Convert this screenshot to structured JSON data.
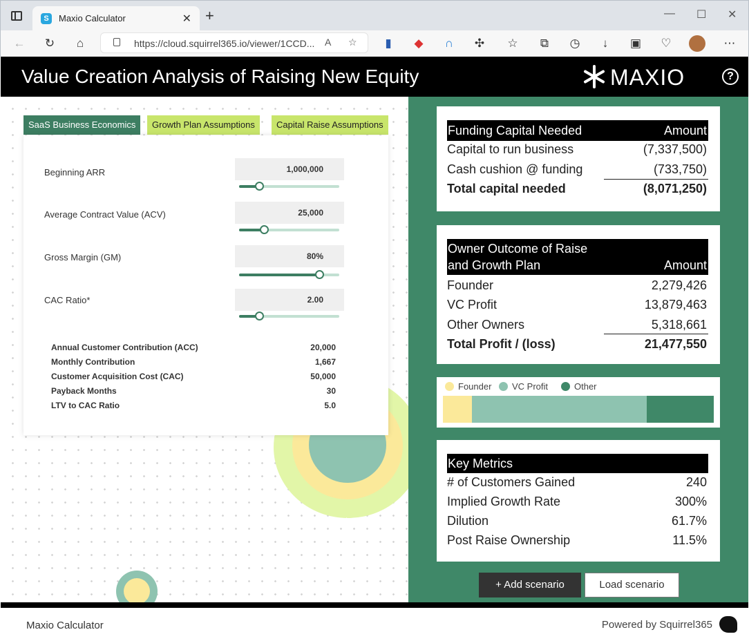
{
  "browser": {
    "tab_title": "Maxio Calculator",
    "url": "https://cloud.squirrel365.io/viewer/1CCD..."
  },
  "app": {
    "title": "Value Creation Analysis of Raising New Equity",
    "brand": "MAXIO",
    "help": "?"
  },
  "tabs": [
    "SaaS Business Economics",
    "Growth Plan Assumptions",
    "Capital Raise Assumptions"
  ],
  "inputs": [
    {
      "label": "Beginning ARR",
      "value": "1,000,000",
      "slider_fraction": 0.2
    },
    {
      "label": "Average Contract Value (ACV)",
      "value": "25,000",
      "slider_fraction": 0.25
    },
    {
      "label": "Gross Margin (GM)",
      "value": "80%",
      "slider_fraction": 0.8
    },
    {
      "label": "CAC Ratio*",
      "value": "2.00",
      "slider_fraction": 0.2
    }
  ],
  "metrics": [
    {
      "label": "Annual Customer Contribution (ACC)",
      "value": "20,000"
    },
    {
      "label": "Monthly Contribution",
      "value": "1,667"
    },
    {
      "label": "Customer Acquisition Cost (CAC)",
      "value": "50,000"
    },
    {
      "label": "Payback Months",
      "value": "30"
    },
    {
      "label": "LTV to CAC Ratio",
      "value": "5.0"
    }
  ],
  "funding": {
    "header": "Funding Capital Needed",
    "amount_header": "Amount",
    "rows": [
      {
        "label": "Capital to run business",
        "value": "(7,337,500)"
      },
      {
        "label": "Cash cushion @ funding",
        "value": "(733,750)"
      }
    ],
    "total": {
      "label": "Total capital needed",
      "value": "(8,071,250)"
    }
  },
  "owner": {
    "header_line1": "Owner Outcome of Raise",
    "header_line2": "and Growth Plan",
    "amount_header": "Amount",
    "rows": [
      {
        "label": "Founder",
        "value": "2,279,426"
      },
      {
        "label": "VC Profit",
        "value": "13,879,463"
      },
      {
        "label": "Other Owners",
        "value": "5,318,661"
      }
    ],
    "total": {
      "label": "Total Profit / (loss)",
      "value": "21,477,550"
    }
  },
  "legend": {
    "founder": "Founder",
    "vc": "VC Profit",
    "other": "Other",
    "colors": {
      "founder": "#fbe99a",
      "vc": "#8ec3b0",
      "other": "#3f8868"
    }
  },
  "key_metrics": {
    "header": "Key Metrics",
    "rows": [
      {
        "label": "# of Customers Gained",
        "value": "240"
      },
      {
        "label": "Implied Growth Rate",
        "value": "300%"
      },
      {
        "label": "Dilution",
        "value": "61.7%"
      },
      {
        "label": "Post Raise Ownership",
        "value": "11.5%"
      }
    ]
  },
  "actions": {
    "add": "+ Add scenario",
    "load": "Load scenario"
  },
  "footer": {
    "left": "Maxio Calculator",
    "right": "Powered by Squirrel365"
  }
}
